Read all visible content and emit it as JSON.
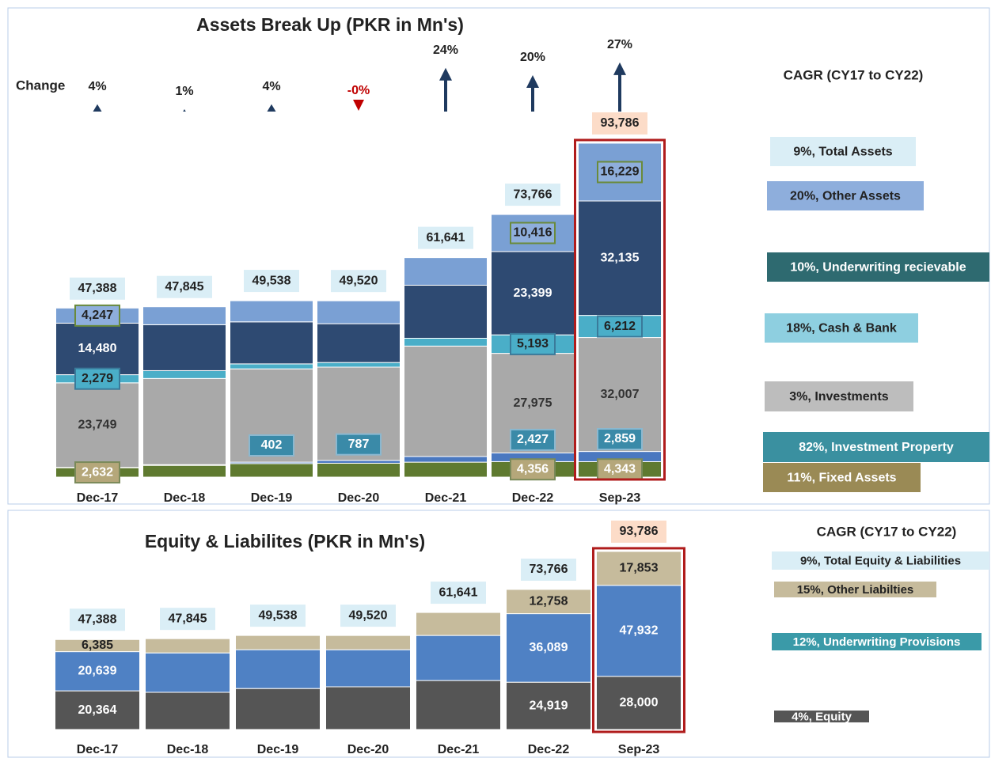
{
  "chart_data": [
    {
      "type": "stacked_bar",
      "title": "Assets Break Up (PKR in Mn's)",
      "categories": [
        "Dec-17",
        "Dec-18",
        "Dec-19",
        "Dec-20",
        "Dec-21",
        "Dec-22",
        "Sep-23"
      ],
      "ylim": [
        0,
        100000
      ],
      "series": [
        {
          "name": "11%, Fixed Assets",
          "color": "#5f7a30",
          "legend_color": "#9a8a55",
          "values": [
            2632,
            3300,
            3800,
            3900,
            4200,
            4356,
            4343
          ],
          "value_labels": [
            "2,632",
            null,
            null,
            null,
            null,
            "4,356",
            "4,343"
          ]
        },
        {
          "name": "82%, Investment Property",
          "color": "#4a78c0",
          "legend_color": "#3a90a0",
          "values": [
            100,
            200,
            402,
            787,
            1600,
            2427,
            2859
          ],
          "value_labels": [
            null,
            null,
            "402",
            "787",
            null,
            "2,427",
            "2,859"
          ]
        },
        {
          "name": "3%, Investments",
          "color": "#a9a9a9",
          "legend_color": "#bdbdbd",
          "values": [
            23749,
            24200,
            26200,
            26200,
            31000,
            27975,
            32007
          ],
          "value_labels": [
            "23,749",
            null,
            null,
            null,
            null,
            "27,975",
            "32,007"
          ]
        },
        {
          "name": "18%, Cash & Bank",
          "color": "#4aaec8",
          "legend_color": "#8ecfe0",
          "values": [
            2279,
            2200,
            1400,
            1300,
            2200,
            5193,
            6212
          ],
          "value_labels": [
            "2,279",
            null,
            null,
            null,
            null,
            "5,193",
            "6,212"
          ]
        },
        {
          "name": "10%, Underwriting recievable",
          "color": "#2e4a72",
          "legend_color": "#2e6a70",
          "values": [
            14480,
            12900,
            11800,
            10900,
            14900,
            23399,
            32135
          ],
          "value_labels": [
            "14,480",
            null,
            null,
            null,
            null,
            "23,399",
            "32,135"
          ]
        },
        {
          "name": "20%, Other Assets",
          "color": "#7aa0d4",
          "legend_color": "#8eaedc",
          "values": [
            4247,
            5045,
            5936,
            6433,
            7741,
            10416,
            16229
          ],
          "value_labels": [
            "4,247",
            null,
            null,
            null,
            null,
            "10,416",
            "16,229"
          ]
        }
      ],
      "totals": [
        47388,
        47845,
        49538,
        49520,
        61641,
        73766,
        93786
      ],
      "total_labels": [
        "47,388",
        "47,845",
        "49,538",
        "49,520",
        "61,641",
        "73,766",
        "93,786"
      ],
      "total_legend": "9%, Total Assets",
      "legend_title": "CAGR (CY17 to CY22)",
      "change": {
        "label": "Change",
        "values": [
          4,
          1,
          4,
          0,
          24,
          20,
          27
        ],
        "value_labels": [
          "4%",
          "1%",
          "4%",
          "-0%",
          "24%",
          "20%",
          "27%"
        ]
      }
    },
    {
      "type": "stacked_bar",
      "title": "Equity & Liabilites (PKR in Mn's)",
      "categories": [
        "Dec-17",
        "Dec-18",
        "Dec-19",
        "Dec-20",
        "Dec-21",
        "Dec-22",
        "Sep-23"
      ],
      "ylim": [
        0,
        100000
      ],
      "series": [
        {
          "name": "4%, Equity",
          "color": "#555555",
          "legend_color": "#555555",
          "values": [
            20364,
            19600,
            21600,
            22500,
            25800,
            24919,
            28000
          ],
          "value_labels": [
            "20,364",
            null,
            null,
            null,
            null,
            "24,919",
            "28,000"
          ]
        },
        {
          "name": "12%, Underwriting Provisions",
          "color": "#4f81c4",
          "legend_color": "#3a9aa8",
          "values": [
            20639,
            20745,
            20438,
            19520,
            23741,
            36089,
            47932
          ],
          "value_labels": [
            "20,639",
            null,
            null,
            null,
            null,
            "36,089",
            "47,932"
          ]
        },
        {
          "name": "15%, Other Liabilties",
          "color": "#c6bb9c",
          "legend_color": "#c6bb9c",
          "values": [
            6385,
            7500,
            7500,
            7500,
            12100,
            12758,
            17853
          ],
          "value_labels": [
            "6,385",
            null,
            null,
            null,
            null,
            "12,758",
            "17,853"
          ]
        }
      ],
      "totals": [
        47388,
        47845,
        49538,
        49520,
        61641,
        73766,
        93786
      ],
      "total_labels": [
        "47,388",
        "47,845",
        "49,538",
        "49,520",
        "61,641",
        "73,766",
        "93,786"
      ],
      "total_legend": "9%, Total Equity & Liabilities",
      "legend_title": "CAGR (CY17 to CY22)"
    }
  ]
}
